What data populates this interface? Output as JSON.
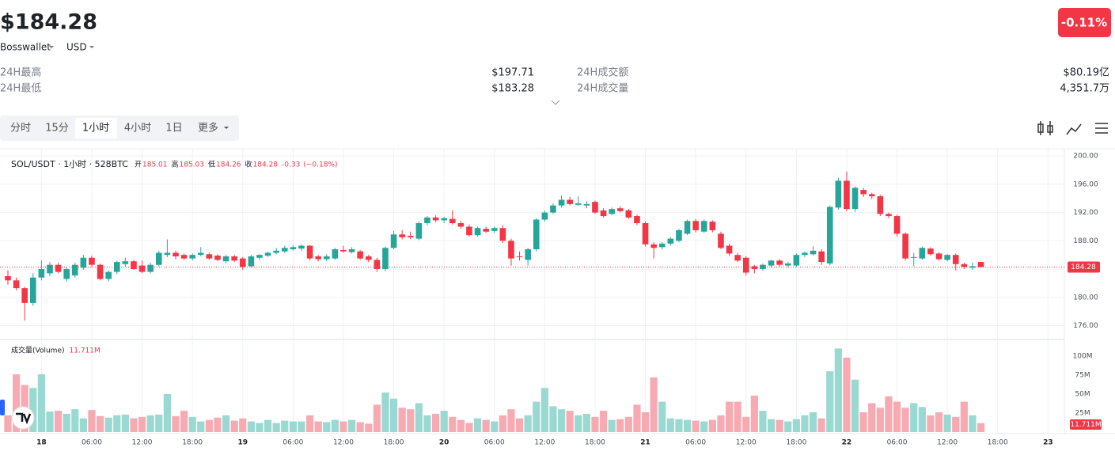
{
  "header": {
    "price": "$184.28",
    "source": "Bosswallet",
    "currency": "USD",
    "change": "-0.11%",
    "stats": [
      {
        "label": "24H最高",
        "value": "$197.71"
      },
      {
        "label": "24H最低",
        "value": "$183.28"
      },
      {
        "label": "24H成交额",
        "value": "$80.19亿"
      },
      {
        "label": "24H成交量",
        "value": "4,351.7万"
      }
    ]
  },
  "tabs": [
    "分时",
    "15分",
    "1小时",
    "4小时",
    "1日",
    "更多"
  ],
  "active_tab": 2,
  "chart_data": {
    "type": "candlestick",
    "legend": {
      "symbol": "SOL/USDT · 1小时 · 528BTC",
      "items": [
        {
          "label": "开",
          "value": "185.01"
        },
        {
          "label": "高",
          "value": "185.03"
        },
        {
          "label": "低",
          "value": "184.26"
        },
        {
          "label": "收",
          "value": "184.28"
        }
      ],
      "change": "-0.33",
      "change_pct": "(−0.18%)"
    },
    "volume_title": "成交量(Volume)",
    "volume_label": "11.711M",
    "up_color": "#26a69a",
    "down_color": "#f23645",
    "up_volume_color": "#9ad9d1",
    "down_volume_color": "#f8aab3",
    "candles": [
      [
        183,
        183.8,
        181.8,
        182.4
      ],
      [
        182.4,
        182.8,
        181,
        181.3
      ],
      [
        181.3,
        181.5,
        176.7,
        179.2
      ],
      [
        179.2,
        183.4,
        178.8,
        182.8
      ],
      [
        182.8,
        185.2,
        182.4,
        184
      ],
      [
        183.4,
        185,
        183,
        184.6
      ],
      [
        184.6,
        184.9,
        183.4,
        183.6
      ],
      [
        182.6,
        184.3,
        182.2,
        184
      ],
      [
        183.1,
        184.9,
        182.8,
        184.6
      ],
      [
        184.2,
        186,
        183.9,
        185.6
      ],
      [
        185.6,
        185.9,
        184.3,
        184.6
      ],
      [
        184.6,
        184.8,
        182.4,
        182.6
      ],
      [
        182.6,
        183.8,
        182.3,
        183.6
      ],
      [
        183.6,
        185.2,
        183.3,
        185
      ],
      [
        184.7,
        185.6,
        184.3,
        185.1
      ],
      [
        185.1,
        185.3,
        183.9,
        184
      ],
      [
        184.5,
        185.2,
        183.4,
        183.6
      ],
      [
        183.6,
        184.9,
        183.4,
        184.6
      ],
      [
        184.6,
        186.6,
        184.4,
        186.3
      ],
      [
        186,
        188.2,
        185.7,
        186.3
      ],
      [
        186.3,
        186.6,
        185.4,
        185.8
      ],
      [
        186,
        186.2,
        185.3,
        185.5
      ],
      [
        185.5,
        186.2,
        185.2,
        186
      ],
      [
        186,
        187.1,
        185.8,
        186.3
      ],
      [
        186.1,
        186.3,
        185.3,
        185.5
      ],
      [
        185.9,
        186.1,
        185.1,
        185.3
      ],
      [
        185.1,
        186,
        184.8,
        185.8
      ],
      [
        185.8,
        186,
        185,
        185.2
      ],
      [
        185.5,
        185.7,
        183.9,
        184.3
      ],
      [
        184.4,
        186,
        184.2,
        185.8
      ],
      [
        185.6,
        186.1,
        185.3,
        186
      ],
      [
        185.9,
        186.5,
        185.7,
        186.3
      ],
      [
        186.3,
        187,
        186.1,
        186.6
      ],
      [
        186.5,
        187.3,
        186.3,
        187
      ],
      [
        186.8,
        187.4,
        186.6,
        187.1
      ],
      [
        186.9,
        187.5,
        186.6,
        187.3
      ],
      [
        187.3,
        187.4,
        185.2,
        185.5
      ],
      [
        185.8,
        186,
        185.1,
        185.4
      ],
      [
        185.4,
        186.1,
        185.1,
        185.8
      ],
      [
        185.5,
        187,
        185.3,
        186.8
      ],
      [
        186.7,
        187.3,
        186.3,
        186.5
      ],
      [
        186.4,
        187.1,
        186.2,
        186.8
      ],
      [
        186.5,
        186.7,
        185.3,
        185.5
      ],
      [
        185.8,
        186,
        185,
        185.3
      ],
      [
        185.3,
        185.6,
        183.6,
        184
      ],
      [
        184,
        187.2,
        183.7,
        187
      ],
      [
        187,
        189.4,
        186.8,
        188.9
      ],
      [
        188.9,
        189.5,
        188.2,
        188.5
      ],
      [
        188.7,
        189.3,
        188.2,
        188.5
      ],
      [
        188.3,
        190.7,
        188.1,
        190.5
      ],
      [
        190.5,
        191.5,
        190.2,
        191.3
      ],
      [
        191.3,
        191.6,
        190.6,
        190.9
      ],
      [
        190.9,
        191.4,
        190.5,
        191.2
      ],
      [
        191.1,
        192.3,
        190.3,
        190.5
      ],
      [
        190.5,
        190.8,
        189.7,
        190
      ],
      [
        190,
        190.3,
        188.6,
        188.8
      ],
      [
        188.8,
        190,
        188.6,
        189.8
      ],
      [
        189.7,
        190,
        189.1,
        189.3
      ],
      [
        189.4,
        190,
        189.1,
        189.8
      ],
      [
        189.8,
        190.2,
        187.7,
        188
      ],
      [
        188,
        188.3,
        184.5,
        185.5
      ],
      [
        185.8,
        186.5,
        185.2,
        185.7
      ],
      [
        185.3,
        187,
        184.5,
        186.8
      ],
      [
        186.8,
        191.2,
        186.5,
        191
      ],
      [
        191,
        192.3,
        190.7,
        192
      ],
      [
        192,
        193.3,
        191.8,
        193
      ],
      [
        193,
        194.4,
        192.7,
        193.8
      ],
      [
        193.8,
        194.2,
        193,
        193.2
      ],
      [
        193.1,
        194.3,
        192.9,
        193.3
      ],
      [
        193,
        193.6,
        192.6,
        193.2
      ],
      [
        193.5,
        193.7,
        191.8,
        192
      ],
      [
        192.3,
        192.6,
        191.3,
        191.5
      ],
      [
        191.8,
        192.7,
        191.6,
        192.5
      ],
      [
        192.6,
        192.9,
        192,
        192.2
      ],
      [
        192.3,
        192.5,
        191.1,
        191.3
      ],
      [
        191.5,
        191.7,
        190.2,
        190.5
      ],
      [
        190.5,
        190.7,
        187.2,
        187.5
      ],
      [
        187.5,
        187.8,
        185.5,
        187
      ],
      [
        187.1,
        187.8,
        186.8,
        187.6
      ],
      [
        187.6,
        188.5,
        187.3,
        188.3
      ],
      [
        188,
        189.7,
        187.8,
        189.5
      ],
      [
        189,
        191,
        188.8,
        190.8
      ],
      [
        190.8,
        191.1,
        189.2,
        189.5
      ],
      [
        189.3,
        191,
        189.1,
        190.8
      ],
      [
        190.7,
        190.9,
        189.2,
        189.5
      ],
      [
        189,
        189.3,
        186.8,
        187
      ],
      [
        187.3,
        187.6,
        185.9,
        186.2
      ],
      [
        186,
        186.3,
        185,
        185.2
      ],
      [
        185.6,
        185.8,
        183.1,
        183.5
      ],
      [
        184.4,
        184.6,
        183.4,
        184
      ],
      [
        184,
        184.8,
        183.8,
        184.6
      ],
      [
        184.5,
        185.3,
        184.2,
        185.2
      ],
      [
        185.2,
        185.4,
        184.3,
        184.6
      ],
      [
        184.5,
        185,
        184.3,
        184.8
      ],
      [
        184.5,
        186.2,
        184.3,
        186
      ],
      [
        186,
        186.5,
        185.7,
        186.3
      ],
      [
        186.1,
        187.2,
        185.9,
        186.6
      ],
      [
        186.5,
        186.8,
        184.6,
        185
      ],
      [
        184.8,
        193,
        184.5,
        192.8
      ],
      [
        192.7,
        196.9,
        192.4,
        196.5
      ],
      [
        196.5,
        197.8,
        192.2,
        192.5
      ],
      [
        192.5,
        195.7,
        192.1,
        195.5
      ],
      [
        195.2,
        195.5,
        194.2,
        194.6
      ],
      [
        194.6,
        194.8,
        193.9,
        194.3
      ],
      [
        194.3,
        194.5,
        191.5,
        191.8
      ],
      [
        191.8,
        192,
        191.2,
        191.5
      ],
      [
        191.5,
        191.7,
        188.6,
        189
      ],
      [
        189,
        189.2,
        185.2,
        185.5
      ],
      [
        185.6,
        186.3,
        184.4,
        185.7
      ],
      [
        185.5,
        187.2,
        185.3,
        187
      ],
      [
        186.9,
        187.1,
        185.9,
        186.1
      ],
      [
        186.2,
        186.4,
        185.2,
        185.4
      ],
      [
        185.3,
        186.1,
        185.1,
        186
      ],
      [
        186,
        186.2,
        183.8,
        184.7
      ],
      [
        184.7,
        184.9,
        184,
        184.3
      ],
      [
        184.2,
        184.9,
        183.9,
        184.4
      ],
      [
        185.01,
        185.03,
        184.26,
        184.28
      ]
    ],
    "volumes": [
      22,
      76,
      62,
      58,
      76,
      27,
      28,
      24,
      30,
      18,
      29,
      21,
      19,
      22,
      23,
      18,
      20,
      22,
      23,
      50,
      21,
      28,
      20,
      14,
      16,
      19,
      22,
      15,
      18,
      14,
      12,
      16,
      12,
      15,
      14,
      14,
      22,
      14,
      13,
      16,
      14,
      16,
      13,
      11,
      36,
      52,
      44,
      32,
      30,
      38,
      22,
      24,
      28,
      20,
      16,
      12,
      18,
      16,
      14,
      22,
      30,
      18,
      22,
      40,
      58,
      34,
      30,
      28,
      22,
      24,
      20,
      28,
      16,
      17,
      20,
      36,
      26,
      72,
      40,
      18,
      17,
      16,
      15,
      14,
      16,
      22,
      40,
      40,
      20,
      48,
      28,
      17,
      16,
      14,
      17,
      22,
      26,
      18,
      80,
      110,
      98,
      69,
      26,
      38,
      32,
      47,
      40,
      32,
      38,
      33,
      22,
      26,
      23,
      20,
      40,
      22,
      11.711
    ],
    "xlim": [
      -0.47,
      125.95
    ],
    "xticks": [
      {
        "value": 4,
        "label": "18"
      },
      {
        "value": 10,
        "label": "06:00"
      },
      {
        "value": 16,
        "label": "12:00"
      },
      {
        "value": 22,
        "label": "18:00"
      },
      {
        "value": 28,
        "label": "19"
      },
      {
        "value": 34,
        "label": "06:00"
      },
      {
        "value": 40,
        "label": "12:00"
      },
      {
        "value": 46,
        "label": "18:00"
      },
      {
        "value": 52,
        "label": "20"
      },
      {
        "value": 58,
        "label": "06:00"
      },
      {
        "value": 64,
        "label": "12:00"
      },
      {
        "value": 70,
        "label": "18:00"
      },
      {
        "value": 76,
        "label": "21"
      },
      {
        "value": 82,
        "label": "06:00"
      },
      {
        "value": 88,
        "label": "12:00"
      },
      {
        "value": 94,
        "label": "18:00"
      },
      {
        "value": 100,
        "label": "22"
      },
      {
        "value": 106,
        "label": "06:00"
      },
      {
        "value": 112,
        "label": "12:00"
      },
      {
        "value": 118,
        "label": "18:00"
      },
      {
        "value": 124,
        "label": "23"
      }
    ],
    "ylim": [
      174.15,
      200.24
    ],
    "yticks": [
      {
        "value": 176,
        "label": "176.00"
      },
      {
        "value": 180,
        "label": "180.00"
      },
      {
        "value": 184,
        "label": "184.00"
      },
      {
        "value": 188,
        "label": "188.00"
      },
      {
        "value": 192,
        "label": "192.00"
      },
      {
        "value": 196,
        "label": "196.00"
      },
      {
        "value": 200,
        "label": "200.00"
      }
    ],
    "y2lim": [
      0,
      118.75
    ],
    "y2ticks": [
      {
        "value": 25,
        "label": "25M"
      },
      {
        "value": 50,
        "label": "50M"
      },
      {
        "value": 75,
        "label": "75M"
      },
      {
        "value": 100,
        "label": "100M"
      }
    ],
    "grid": true
  }
}
